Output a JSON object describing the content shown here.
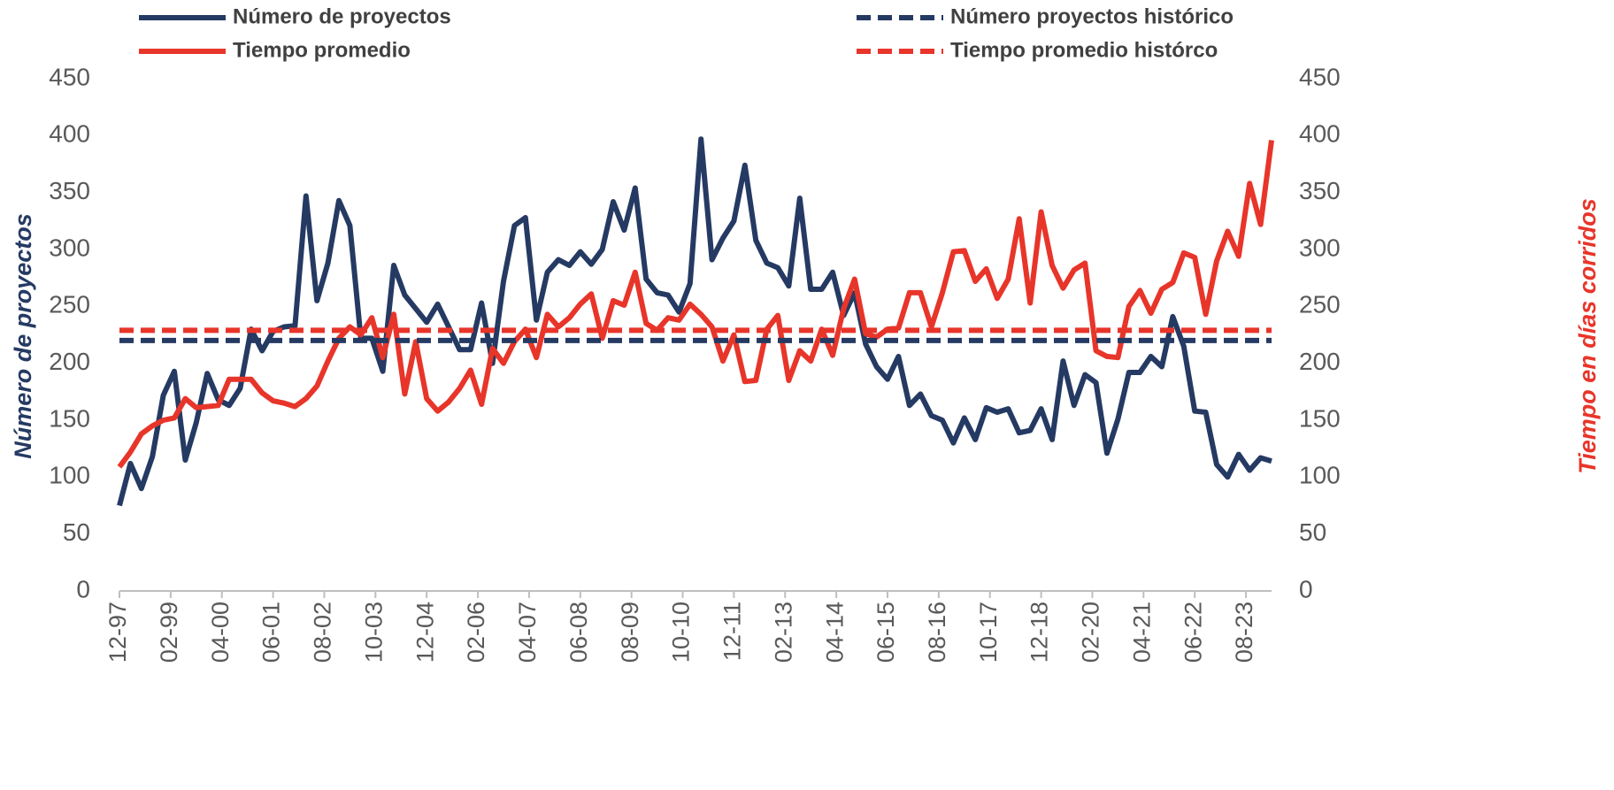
{
  "chart_data": {
    "type": "line",
    "x": [
      "12-97",
      "03-98",
      "06-98",
      "09-98",
      "12-98",
      "03-99",
      "06-99",
      "09-99",
      "12-99",
      "03-00",
      "06-00",
      "09-00",
      "12-00",
      "03-01",
      "06-01",
      "09-01",
      "12-01",
      "03-02",
      "06-02",
      "09-02",
      "12-02",
      "03-03",
      "06-03",
      "09-03",
      "12-03",
      "03-04",
      "06-04",
      "09-04",
      "12-04",
      "03-05",
      "06-05",
      "09-05",
      "12-05",
      "03-06",
      "06-06",
      "09-06",
      "12-06",
      "03-07",
      "06-07",
      "09-07",
      "12-07",
      "03-08",
      "06-08",
      "09-08",
      "12-08",
      "03-09",
      "06-09",
      "09-09",
      "12-09",
      "03-10",
      "06-10",
      "09-10",
      "12-10",
      "03-11",
      "06-11",
      "09-11",
      "12-11",
      "03-12",
      "06-12",
      "09-12",
      "12-12",
      "03-13",
      "06-13",
      "09-13",
      "12-13",
      "03-14",
      "06-14",
      "09-14",
      "12-14",
      "03-15",
      "06-15",
      "09-15",
      "12-15",
      "03-16",
      "06-16",
      "09-16",
      "12-16",
      "03-17",
      "06-17",
      "09-17",
      "12-17",
      "03-18",
      "06-18",
      "09-18",
      "12-18",
      "03-19",
      "06-19",
      "09-19",
      "12-19",
      "03-20",
      "06-20",
      "09-20",
      "12-20",
      "03-21",
      "06-21",
      "09-21",
      "12-21",
      "03-22",
      "06-22",
      "09-22",
      "12-22",
      "03-23",
      "06-23",
      "09-23",
      "12-23",
      "03-24"
    ],
    "xlim": [
      "12-97",
      "03-24"
    ],
    "xticks": [
      "12-97",
      "02-99",
      "04-00",
      "06-01",
      "08-02",
      "10-03",
      "12-04",
      "02-06",
      "04-07",
      "06-08",
      "08-09",
      "10-10",
      "12-11",
      "02-13",
      "04-14",
      "06-15",
      "08-16",
      "10-17",
      "12-18",
      "02-20",
      "04-21",
      "06-22",
      "08-23"
    ],
    "ylabel": "Número de proyectos",
    "y2label": "Tiempo en días corridos",
    "ylim": [
      0,
      450
    ],
    "yticks": [
      0,
      50,
      100,
      150,
      200,
      250,
      300,
      350,
      400,
      450
    ],
    "y2lim": [
      0,
      450
    ],
    "y2ticks": [
      0,
      50,
      100,
      150,
      200,
      250,
      300,
      350,
      400,
      450
    ],
    "series": [
      {
        "name": "Número de proyectos",
        "color": "#253a63",
        "values": [
          75,
          112,
          90,
          118,
          172,
          193,
          115,
          148,
          191,
          168,
          163,
          178,
          230,
          211,
          228,
          232,
          233,
          347,
          255,
          288,
          343,
          321,
          222,
          222,
          193,
          286,
          260,
          248,
          236,
          252,
          232,
          212,
          212,
          253,
          200,
          272,
          321,
          328,
          238,
          280,
          291,
          286,
          298,
          287,
          300,
          342,
          317,
          354,
          274,
          262,
          260,
          245,
          270,
          397,
          291,
          310,
          325,
          374,
          308,
          288,
          284,
          268,
          345,
          265,
          265,
          280,
          242,
          262,
          217,
          197,
          186,
          206,
          163,
          173,
          154,
          150,
          130,
          152,
          133,
          161,
          157,
          160,
          139,
          141,
          160,
          133,
          202,
          163,
          190,
          183,
          121,
          151,
          192,
          192,
          206,
          197,
          241,
          215,
          158,
          157,
          111,
          100,
          120,
          106,
          117,
          114
        ]
      },
      {
        "name": "Tiempo promedio",
        "color": "#e8352a",
        "axis": "y2",
        "values": [
          109,
          122,
          138,
          145,
          150,
          152,
          169,
          161,
          162,
          163,
          186,
          186,
          186,
          174,
          167,
          165,
          162,
          169,
          180,
          202,
          222,
          232,
          225,
          240,
          205,
          243,
          173,
          219,
          169,
          158,
          166,
          178,
          194,
          164,
          213,
          200,
          219,
          230,
          205,
          243,
          232,
          240,
          252,
          261,
          222,
          255,
          251,
          280,
          235,
          229,
          240,
          238,
          252,
          243,
          232,
          202,
          225,
          184,
          185,
          230,
          242,
          185,
          211,
          202,
          230,
          207,
          248,
          274,
          226,
          223,
          230,
          231,
          262,
          262,
          232,
          262,
          298,
          299,
          272,
          283,
          257,
          274,
          327,
          253,
          333,
          286,
          266,
          282,
          288,
          211,
          206,
          205,
          250,
          264,
          244,
          265,
          271,
          297,
          293,
          243,
          290,
          316,
          294,
          358,
          322,
          396
        ]
      },
      {
        "name": "Número proyectos histórico",
        "color": "#253a63",
        "dash": true,
        "value": 220
      },
      {
        "name": "Tiempo promedio histórco",
        "color": "#e8352a",
        "dash": true,
        "axis": "y2",
        "value": 229
      }
    ]
  }
}
